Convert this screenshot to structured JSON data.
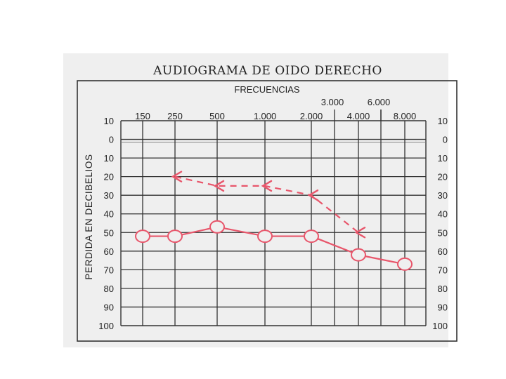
{
  "chart_data": {
    "type": "line",
    "title": "AUDIOGRAMA DE OIDO DERECHO",
    "xlabel": "FRECUENCIAS",
    "ylabel": "PERDIDA EN DECIBELIOS",
    "x_ticks_main": [
      "150",
      "250",
      "500",
      "1.000",
      "2.000",
      "4.000",
      "8.000"
    ],
    "x_ticks_upper": [
      "3.000",
      "6.000"
    ],
    "y_ticks": [
      -10,
      0,
      10,
      20,
      30,
      40,
      50,
      60,
      70,
      80,
      90,
      100
    ],
    "y_tick_labels": [
      "10",
      "0",
      "10",
      "20",
      "30",
      "40",
      "50",
      "60",
      "70",
      "80",
      "90",
      "100"
    ],
    "ylim": [
      -10,
      100
    ],
    "y_inverted": true,
    "grid": true,
    "series": [
      {
        "marker": "circle",
        "line": "solid",
        "color": "#e8566b",
        "x": [
          "150",
          "250",
          "500",
          "1.000",
          "2.000",
          "4.000",
          "8.000"
        ],
        "values": [
          52,
          52,
          47,
          52,
          52,
          62,
          67
        ]
      },
      {
        "marker": "arrow-left",
        "line": "dashed",
        "color": "#e8566b",
        "x": [
          "250",
          "500",
          "1.000",
          "2.000",
          "4.000"
        ],
        "values": [
          20,
          25,
          25,
          30,
          50
        ]
      }
    ]
  }
}
